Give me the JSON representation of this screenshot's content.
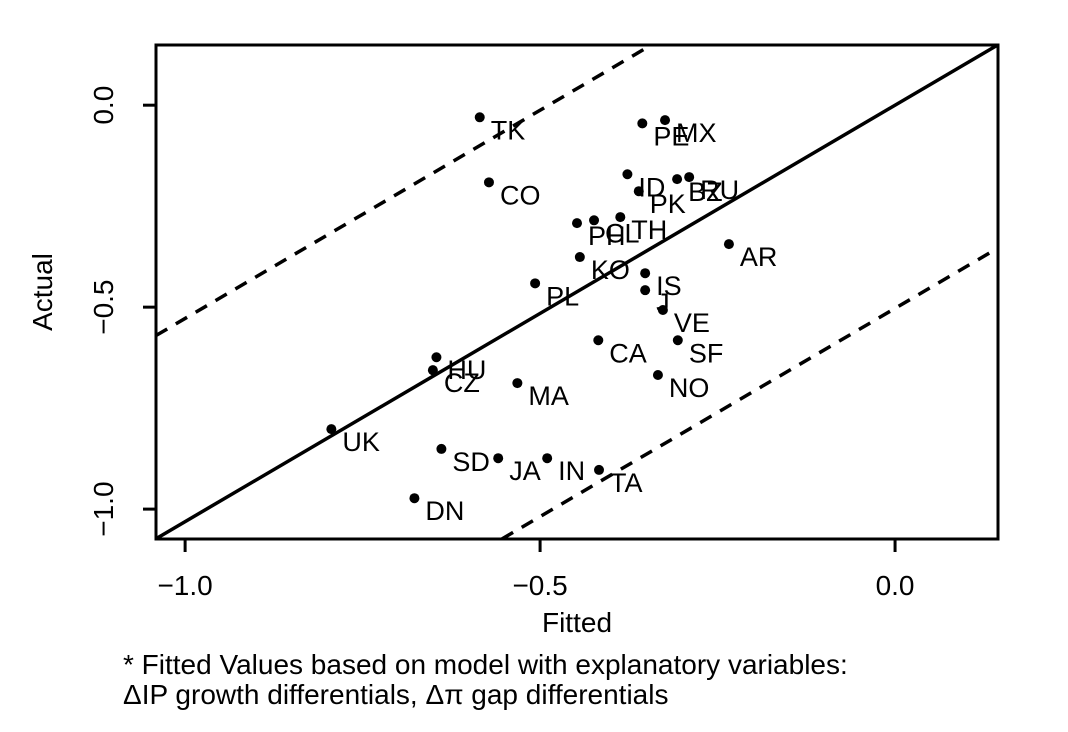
{
  "figure": {
    "background": "#ffffff",
    "ink_color": "#000000"
  },
  "chart_data": {
    "type": "scatter",
    "title": "",
    "xlabel": "Fitted",
    "ylabel": "Actual",
    "xlim": [
      -1.041,
      0.145
    ],
    "ylim": [
      -1.074,
      0.149
    ],
    "x_ticks": [
      -1.0,
      -0.5,
      0.0
    ],
    "x_tick_labels": [
      "−1.0",
      "−0.5",
      "0.0"
    ],
    "y_ticks": [
      0.0,
      -0.5,
      -1.0
    ],
    "y_tick_labels": [
      "0.0",
      "−0.5",
      "−1.0"
    ],
    "grid": false,
    "legend": "none",
    "marker": "filled-circle",
    "points": [
      {
        "label": "TK",
        "fitted": -0.585,
        "actual": -0.03
      },
      {
        "label": "CO",
        "fitted": -0.572,
        "actual": -0.191
      },
      {
        "label": "PE",
        "fitted": -0.356,
        "actual": -0.045
      },
      {
        "label": "MX",
        "fitted": -0.324,
        "actual": -0.037
      },
      {
        "label": "ID",
        "fitted": -0.377,
        "actual": -0.171
      },
      {
        "label": "PK",
        "fitted": -0.361,
        "actual": -0.213
      },
      {
        "label": "BZ",
        "fitted": -0.307,
        "actual": -0.183
      },
      {
        "label": "RU",
        "fitted": -0.29,
        "actual": -0.178
      },
      {
        "label": "PH",
        "fitted": -0.448,
        "actual": -0.292
      },
      {
        "label": "CL",
        "fitted": -0.424,
        "actual": -0.285
      },
      {
        "label": "TH",
        "fitted": -0.387,
        "actual": -0.277
      },
      {
        "label": "KO",
        "fitted": -0.444,
        "actual": -0.376
      },
      {
        "label": "PL",
        "fitted": -0.507,
        "actual": -0.441
      },
      {
        "label": "IS",
        "fitted": -0.352,
        "actual": -0.416
      },
      {
        "label": "J",
        "fitted": -0.352,
        "actual": -0.458
      },
      {
        "label": "VE",
        "fitted": -0.327,
        "actual": -0.507
      },
      {
        "label": "AR",
        "fitted": -0.234,
        "actual": -0.344
      },
      {
        "label": "CA",
        "fitted": -0.418,
        "actual": -0.582
      },
      {
        "label": "SF",
        "fitted": -0.306,
        "actual": -0.582
      },
      {
        "label": "NO",
        "fitted": -0.334,
        "actual": -0.668
      },
      {
        "label": "HU",
        "fitted": -0.646,
        "actual": -0.624
      },
      {
        "label": "CZ",
        "fitted": -0.651,
        "actual": -0.656
      },
      {
        "label": "MA",
        "fitted": -0.532,
        "actual": -0.688
      },
      {
        "label": "UK",
        "fitted": -0.794,
        "actual": -0.802
      },
      {
        "label": "SD",
        "fitted": -0.639,
        "actual": -0.851
      },
      {
        "label": "JA",
        "fitted": -0.559,
        "actual": -0.874
      },
      {
        "label": "IN",
        "fitted": -0.49,
        "actual": -0.874
      },
      {
        "label": "TA",
        "fitted": -0.417,
        "actual": -0.903
      },
      {
        "label": "DN",
        "fitted": -0.677,
        "actual": -0.973
      }
    ],
    "lines": [
      {
        "name": "identity-line",
        "slope": 1.031,
        "intercept": 0.0,
        "style": "solid"
      },
      {
        "name": "upper-confidence-band",
        "slope": 1.031,
        "intercept": 0.503,
        "style": "dashed"
      },
      {
        "name": "lower-confidence-band",
        "slope": 1.031,
        "intercept": -0.503,
        "style": "dashed"
      }
    ]
  },
  "footnote": {
    "line1": "* Fitted Values based on model with explanatory variables:",
    "line2": "ΔIP growth differentials, Δπ gap differentials"
  }
}
